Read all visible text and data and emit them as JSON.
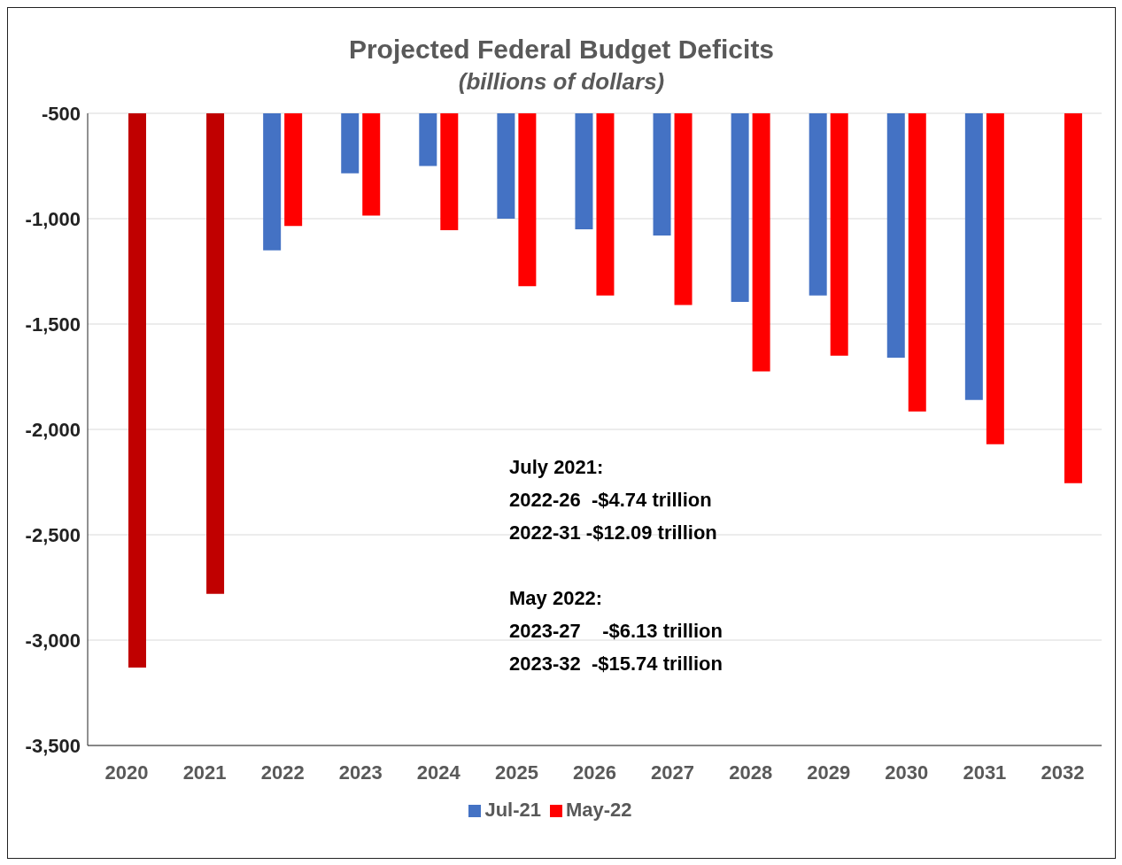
{
  "chart_data": {
    "type": "bar",
    "title": "Projected Federal Budget Deficits",
    "subtitle": "(billions of dollars)",
    "categories": [
      "2020",
      "2021",
      "2022",
      "2023",
      "2024",
      "2025",
      "2026",
      "2027",
      "2028",
      "2029",
      "2030",
      "2031",
      "2032"
    ],
    "series": [
      {
        "name": "Jul-21",
        "color": "#4472c4",
        "values": [
          null,
          null,
          -1150,
          -785,
          -750,
          -1000,
          -1050,
          -1080,
          -1395,
          -1365,
          -1660,
          -1860,
          null
        ]
      },
      {
        "name": "May-22",
        "color": "#ff0000",
        "colors": [
          "#c00000",
          "#c00000",
          "#ff0000",
          "#ff0000",
          "#ff0000",
          "#ff0000",
          "#ff0000",
          "#ff0000",
          "#ff0000",
          "#ff0000",
          "#ff0000",
          "#ff0000",
          "#ff0000"
        ],
        "values": [
          -3130,
          -2780,
          -1035,
          -985,
          -1055,
          -1320,
          -1365,
          -1410,
          -1725,
          -1650,
          -1915,
          -2070,
          -2255
        ]
      }
    ],
    "ylim": [
      -3500,
      -500
    ],
    "yticks": [
      {
        "value": -3500,
        "label": "-3,500"
      },
      {
        "value": -3000,
        "label": "-3,000"
      },
      {
        "value": -2500,
        "label": "-2,500"
      },
      {
        "value": -2000,
        "label": "-2,000"
      },
      {
        "value": -1500,
        "label": "-1,500"
      },
      {
        "value": -1000,
        "label": "-1,000"
      },
      {
        "value": -500,
        "label": "-500"
      }
    ],
    "grid": "y",
    "legend": "bottom",
    "annotations": [
      "July 2021:\n2022-26  -$4.74 trillion\n2022-31 -$12.09 trillion",
      "May 2022:\n2023-27    -$6.13 trillion\n2023-32  -$15.74 trillion"
    ]
  }
}
